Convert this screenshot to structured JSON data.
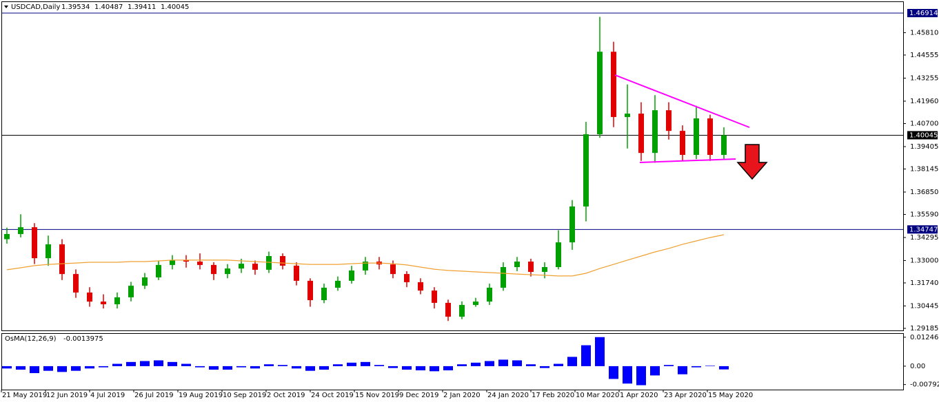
{
  "header": {
    "symbol": "USDCAD,Daily",
    "ohlc": [
      1.39534,
      1.40487,
      1.39411,
      1.40045
    ]
  },
  "chart_data": [
    {
      "type": "candlestick",
      "x": [
        2,
        7,
        12,
        17,
        22,
        27,
        32,
        37,
        42,
        47,
        52,
        57,
        62,
        67,
        72,
        77,
        82,
        87,
        92,
        97,
        102,
        107,
        112,
        117,
        122,
        127,
        132,
        137,
        142,
        147,
        152,
        157,
        162,
        167,
        172,
        177,
        182,
        187,
        192,
        197,
        202,
        207,
        212,
        217,
        222,
        227,
        232,
        237,
        242,
        247,
        252,
        257,
        262
      ],
      "open": [
        1.342,
        1.3449,
        1.3487,
        1.3313,
        1.3391,
        1.3224,
        1.312,
        1.3069,
        1.3054,
        1.3093,
        1.3158,
        1.3205,
        1.3275,
        1.3302,
        1.3294,
        1.3275,
        1.3224,
        1.3255,
        1.3282,
        1.3248,
        1.3325,
        1.3271,
        1.3186,
        1.3077,
        1.3147,
        1.3186,
        1.3244,
        1.3294,
        1.3278,
        1.3224,
        1.3178,
        1.3131,
        1.3062,
        1.2984,
        1.305,
        1.3069,
        1.3147,
        1.3263,
        1.3294,
        1.3236,
        1.3263,
        1.3402,
        1.3604,
        1.401,
        1.4474,
        1.4107,
        1.4126,
        1.3905,
        1.4145,
        1.4029,
        1.3894,
        1.4099,
        1.3894
      ],
      "high": [
        1.3485,
        1.356,
        1.351,
        1.344,
        1.342,
        1.325,
        1.315,
        1.311,
        1.312,
        1.318,
        1.323,
        1.33,
        1.333,
        1.333,
        1.334,
        1.329,
        1.328,
        1.331,
        1.33,
        1.335,
        1.334,
        1.329,
        1.32,
        1.317,
        1.321,
        1.327,
        1.332,
        1.332,
        1.33,
        1.324,
        1.32,
        1.315,
        1.308,
        1.307,
        1.309,
        1.317,
        1.329,
        1.332,
        1.331,
        1.329,
        1.347,
        1.364,
        1.408,
        1.467,
        1.453,
        1.429,
        1.419,
        1.423,
        1.419,
        1.406,
        1.417,
        1.412,
        1.4049
      ],
      "low": [
        1.3395,
        1.343,
        1.328,
        1.327,
        1.319,
        1.309,
        1.304,
        1.303,
        1.303,
        1.307,
        1.314,
        1.319,
        1.325,
        1.326,
        1.325,
        1.319,
        1.32,
        1.323,
        1.322,
        1.323,
        1.325,
        1.316,
        1.304,
        1.306,
        1.313,
        1.317,
        1.322,
        1.325,
        1.32,
        1.315,
        1.311,
        1.303,
        1.296,
        1.297,
        1.304,
        1.305,
        1.313,
        1.324,
        1.321,
        1.32,
        1.325,
        1.336,
        1.352,
        1.399,
        1.405,
        1.393,
        1.386,
        1.385,
        1.398,
        1.386,
        1.387,
        1.386,
        1.387
      ],
      "close": [
        1.3449,
        1.3487,
        1.3313,
        1.3391,
        1.3224,
        1.312,
        1.3069,
        1.3054,
        1.3093,
        1.3158,
        1.3205,
        1.3275,
        1.3302,
        1.3294,
        1.3275,
        1.3224,
        1.3255,
        1.3282,
        1.3248,
        1.3325,
        1.3271,
        1.3186,
        1.3077,
        1.3147,
        1.3186,
        1.3244,
        1.3294,
        1.3278,
        1.3224,
        1.3178,
        1.3131,
        1.3062,
        1.2984,
        1.305,
        1.3069,
        1.3147,
        1.3263,
        1.3294,
        1.3236,
        1.3263,
        1.3402,
        1.3604,
        1.401,
        1.4474,
        1.4107,
        1.4126,
        1.3905,
        1.4145,
        1.4029,
        1.3894,
        1.4099,
        1.3894,
        1.40045
      ],
      "up_color": "#00a000",
      "down_color": "#e00000",
      "ma_values": [
        1.3248,
        1.3259,
        1.3271,
        1.3278,
        1.3282,
        1.3286,
        1.329,
        1.329,
        1.329,
        1.3294,
        1.3294,
        1.3298,
        1.3302,
        1.3302,
        1.3302,
        1.3302,
        1.3302,
        1.3298,
        1.3294,
        1.329,
        1.3286,
        1.3282,
        1.3278,
        1.3278,
        1.3278,
        1.3282,
        1.3286,
        1.3286,
        1.3282,
        1.3275,
        1.3263,
        1.3251,
        1.3244,
        1.324,
        1.3236,
        1.3232,
        1.3228,
        1.3224,
        1.322,
        1.3217,
        1.3213,
        1.3213,
        1.3228,
        1.3255,
        1.3278,
        1.3302,
        1.3325,
        1.3348,
        1.3368,
        1.3391,
        1.341,
        1.3429,
        1.3445
      ],
      "ma_color": "#f0a030",
      "levels": [
        1.46914,
        1.40045,
        1.34747
      ],
      "level_colors": [
        "#000080",
        "#000000",
        "#000080"
      ],
      "xlim": [
        0,
        327
      ],
      "ylim": [
        1.29069,
        1.47572
      ],
      "yticks": [
        1.29185,
        1.30445,
        {
          "value": 1.3174,
          "label": "1.31740"
        },
        {
          "value": 1.33,
          "label": "1.33000"
        },
        1.34295,
        {
          "value": 1.3559,
          "label": "1.35590"
        },
        {
          "value": 1.3685,
          "label": "1.36850"
        },
        1.38145,
        1.39405,
        {
          "value": 1.407,
          "label": "1.40700"
        },
        {
          "value": 1.4196,
          "label": "1.41960"
        },
        1.43255,
        1.44555,
        {
          "value": 1.4581,
          "label": "1.45810"
        }
      ]
    },
    {
      "type": "bar",
      "title": "OsMA(12,26,9)",
      "current": -0.0013975,
      "color": "#0000ff",
      "x": [
        2,
        7,
        12,
        17,
        22,
        27,
        32,
        37,
        42,
        47,
        52,
        57,
        62,
        67,
        72,
        77,
        82,
        87,
        92,
        97,
        102,
        107,
        112,
        117,
        122,
        127,
        132,
        137,
        142,
        147,
        152,
        157,
        162,
        167,
        172,
        177,
        182,
        187,
        192,
        197,
        202,
        207,
        212,
        217,
        222,
        227,
        232,
        237,
        242,
        247,
        252,
        257,
        262
      ],
      "values": [
        -0.001,
        -0.0015,
        -0.003,
        -0.002,
        -0.0025,
        -0.002,
        -0.001,
        -0.0005,
        0.001,
        0.0018,
        0.0022,
        0.0025,
        0.0018,
        0.001,
        -0.0005,
        -0.0015,
        -0.0015,
        -0.0005,
        -0.001,
        0.0008,
        0.0005,
        -0.001,
        -0.002,
        -0.0015,
        0.0008,
        0.0015,
        0.0018,
        0.0005,
        -0.0008,
        -0.0015,
        -0.0018,
        -0.0022,
        -0.0018,
        0.0008,
        0.0015,
        0.0022,
        0.0028,
        0.0025,
        0.0008,
        -0.0008,
        0.001,
        0.004,
        0.009,
        0.0125,
        -0.0055,
        -0.0075,
        -0.0082,
        -0.004,
        0.0005,
        -0.0035,
        -0.0005,
        0.0002,
        -0.0014
      ],
      "xlim": [
        0,
        327
      ],
      "ylim": [
        -0.0101,
        0.0142
      ],
      "yticks": [
        0.012462,
        {
          "value": 0,
          "label": "0.00"
        },
        -0.007921
      ],
      "xticks": [
        {
          "value": 0,
          "label": "21 May 2019"
        },
        {
          "value": 16,
          "label": "12 Jun 2019"
        },
        {
          "value": 32,
          "label": "4 Jul 2019"
        },
        {
          "value": 48,
          "label": "26 Jul 2019"
        },
        {
          "value": 64,
          "label": "19 Aug 2019"
        },
        {
          "value": 80,
          "label": "10 Sep 2019"
        },
        {
          "value": 96,
          "label": "2 Oct 2019"
        },
        {
          "value": 112,
          "label": "24 Oct 2019"
        },
        {
          "value": 128,
          "label": "15 Nov 2019"
        },
        {
          "value": 144,
          "label": "9 Dec 2019"
        },
        {
          "value": 160,
          "label": "2 Jan 2020"
        },
        {
          "value": 176,
          "label": "24 Jan 2020"
        },
        {
          "value": 192,
          "label": "17 Feb 2020"
        },
        {
          "value": 208,
          "label": "10 Mar 2020"
        },
        {
          "value": 224,
          "label": "1 Apr 2020"
        },
        {
          "value": 240,
          "label": "23 Apr 2020"
        },
        {
          "value": 256,
          "label": "15 May 2020"
        }
      ]
    }
  ]
}
